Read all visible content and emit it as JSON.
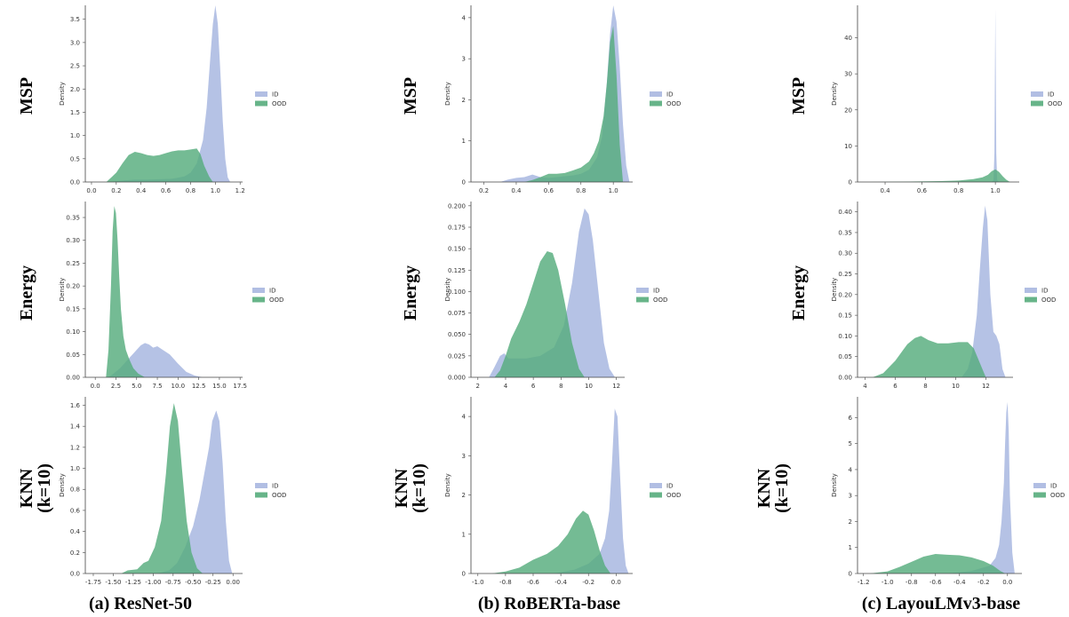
{
  "colors": {
    "ID": "#a8b7e0",
    "OOD": "#56ac7c"
  },
  "row_labels": [
    [
      "MSP"
    ],
    [
      "Energy"
    ],
    [
      "KNN",
      "(k=10)"
    ]
  ],
  "captions": [
    "(a) ResNet-50",
    "(b) RoBERTa-base",
    "(c) LayouLMv3-base"
  ],
  "chart_data": [
    {
      "type": "area",
      "model": "ResNet-50",
      "score": "MSP",
      "ylabel": "Density",
      "xlim": [
        -0.05,
        1.22
      ],
      "ylim": [
        0,
        3.8
      ],
      "xticks": [
        "0.0",
        "0.2",
        "0.4",
        "0.6",
        "0.8",
        "1.0",
        "1.2"
      ],
      "xtick_values": [
        0,
        0.2,
        0.4,
        0.6,
        0.8,
        1.0,
        1.2
      ],
      "yticks": [
        "0.0",
        "0.5",
        "1.0",
        "1.5",
        "2.0",
        "2.5",
        "3.0",
        "3.5"
      ],
      "ytick_values": [
        0,
        0.5,
        1,
        1.5,
        2,
        2.5,
        3,
        3.5
      ],
      "legend": [
        "ID",
        "OOD"
      ],
      "series": [
        {
          "name": "ID",
          "x": [
            0.15,
            0.25,
            0.35,
            0.45,
            0.55,
            0.65,
            0.75,
            0.8,
            0.85,
            0.9,
            0.93,
            0.96,
            0.98,
            1.0,
            1.02,
            1.04,
            1.06,
            1.08,
            1.1,
            1.12
          ],
          "y": [
            0,
            0.03,
            0.05,
            0.05,
            0.06,
            0.07,
            0.12,
            0.2,
            0.4,
            0.9,
            1.6,
            2.7,
            3.4,
            3.8,
            3.4,
            2.4,
            1.3,
            0.5,
            0.1,
            0
          ]
        },
        {
          "name": "OOD",
          "x": [
            0.12,
            0.2,
            0.25,
            0.3,
            0.35,
            0.4,
            0.45,
            0.5,
            0.55,
            0.6,
            0.65,
            0.7,
            0.75,
            0.8,
            0.85,
            0.88,
            0.91,
            0.95,
            0.98
          ],
          "y": [
            0,
            0.2,
            0.4,
            0.58,
            0.65,
            0.62,
            0.58,
            0.56,
            0.58,
            0.62,
            0.66,
            0.68,
            0.68,
            0.7,
            0.72,
            0.6,
            0.35,
            0.12,
            0
          ]
        }
      ]
    },
    {
      "type": "area",
      "model": "RoBERTa-base",
      "score": "MSP",
      "ylabel": "Density",
      "xlim": [
        0.12,
        1.12
      ],
      "ylim": [
        0,
        4.3
      ],
      "xticks": [
        "0.2",
        "0.4",
        "0.6",
        "0.8",
        "1.0"
      ],
      "xtick_values": [
        0.2,
        0.4,
        0.6,
        0.8,
        1.0
      ],
      "yticks": [
        "0",
        "1",
        "2",
        "3",
        "4"
      ],
      "ytick_values": [
        0,
        1,
        2,
        3,
        4
      ],
      "legend": [
        "ID",
        "OOD"
      ],
      "series": [
        {
          "name": "ID",
          "x": [
            0.3,
            0.35,
            0.4,
            0.45,
            0.5,
            0.55,
            0.6,
            0.65,
            0.7,
            0.75,
            0.8,
            0.85,
            0.9,
            0.93,
            0.96,
            0.98,
            1.0,
            1.02,
            1.04,
            1.06,
            1.08,
            1.1
          ],
          "y": [
            0,
            0.06,
            0.1,
            0.12,
            0.18,
            0.12,
            0.1,
            0.12,
            0.14,
            0.16,
            0.2,
            0.3,
            0.6,
            1.1,
            2.4,
            3.6,
            4.3,
            3.9,
            2.8,
            1.4,
            0.4,
            0
          ]
        },
        {
          "name": "OOD",
          "x": [
            0.45,
            0.5,
            0.55,
            0.6,
            0.65,
            0.7,
            0.75,
            0.8,
            0.85,
            0.88,
            0.91,
            0.94,
            0.96,
            0.98,
            1.0,
            1.02,
            1.04,
            1.06
          ],
          "y": [
            0,
            0.05,
            0.12,
            0.2,
            0.2,
            0.22,
            0.28,
            0.35,
            0.5,
            0.7,
            1.0,
            1.6,
            2.4,
            3.4,
            3.8,
            2.6,
            0.9,
            0
          ]
        }
      ]
    },
    {
      "type": "area",
      "model": "LayouLMv3-base",
      "score": "MSP",
      "ylabel": "Density",
      "xlim": [
        0.25,
        1.13
      ],
      "ylim": [
        0,
        49
      ],
      "xticks": [
        "0.4",
        "0.6",
        "0.8",
        "1.0"
      ],
      "xtick_values": [
        0.4,
        0.6,
        0.8,
        1.0
      ],
      "yticks": [
        "0",
        "10",
        "20",
        "30",
        "40"
      ],
      "ytick_values": [
        0,
        10,
        20,
        30,
        40
      ],
      "legend": [
        "ID",
        "OOD"
      ],
      "series": [
        {
          "name": "ID",
          "x": [
            0.98,
            0.99,
            0.995,
            1.0,
            1.005,
            1.01,
            1.02
          ],
          "y": [
            0,
            0.5,
            8,
            48,
            8,
            0.5,
            0
          ]
        },
        {
          "name": "OOD",
          "x": [
            0.3,
            0.5,
            0.7,
            0.8,
            0.88,
            0.93,
            0.96,
            0.98,
            1.0,
            1.02,
            1.04,
            1.06,
            1.08
          ],
          "y": [
            0,
            0.1,
            0.25,
            0.4,
            0.8,
            1.3,
            2.0,
            3.0,
            3.5,
            2.8,
            1.6,
            0.6,
            0
          ]
        }
      ]
    },
    {
      "type": "area",
      "model": "ResNet-50",
      "score": "Energy",
      "ylabel": "Density",
      "xlim": [
        -1.2,
        17.8
      ],
      "ylim": [
        0,
        0.385
      ],
      "xticks": [
        "0.0",
        "2.5",
        "5.0",
        "7.5",
        "10.0",
        "12.5",
        "15.0",
        "17.5"
      ],
      "xtick_values": [
        0,
        2.5,
        5,
        7.5,
        10,
        12.5,
        15,
        17.5
      ],
      "yticks": [
        "0.00",
        "0.05",
        "0.10",
        "0.15",
        "0.20",
        "0.25",
        "0.30",
        "0.35"
      ],
      "ytick_values": [
        0,
        0.05,
        0.1,
        0.15,
        0.2,
        0.25,
        0.3,
        0.35
      ],
      "legend": [
        "ID",
        "OOD"
      ],
      "series": [
        {
          "name": "ID",
          "x": [
            1.5,
            2,
            3,
            4,
            5,
            5.5,
            6,
            6.5,
            7,
            7.5,
            8,
            9,
            10,
            11,
            12,
            13
          ],
          "y": [
            0,
            0.005,
            0.02,
            0.04,
            0.06,
            0.07,
            0.075,
            0.072,
            0.065,
            0.068,
            0.062,
            0.05,
            0.03,
            0.012,
            0.004,
            0
          ]
        },
        {
          "name": "OOD",
          "x": [
            1.3,
            1.6,
            1.9,
            2.1,
            2.3,
            2.5,
            2.7,
            2.9,
            3.1,
            3.4,
            3.7,
            4.1,
            4.6,
            5.2,
            6.0
          ],
          "y": [
            0,
            0.06,
            0.2,
            0.32,
            0.375,
            0.36,
            0.3,
            0.22,
            0.15,
            0.09,
            0.06,
            0.04,
            0.02,
            0.008,
            0
          ]
        }
      ]
    },
    {
      "type": "area",
      "model": "RoBERTa-base",
      "score": "Energy",
      "ylabel": "Density",
      "xlim": [
        1.5,
        12.6
      ],
      "ylim": [
        0,
        0.205
      ],
      "xticks": [
        "2",
        "4",
        "6",
        "8",
        "10",
        "12"
      ],
      "xtick_values": [
        2,
        4,
        6,
        8,
        10,
        12
      ],
      "yticks": [
        "0.000",
        "0.025",
        "0.050",
        "0.075",
        "0.100",
        "0.125",
        "0.150",
        "0.175",
        "0.200"
      ],
      "ytick_values": [
        0,
        0.025,
        0.05,
        0.075,
        0.1,
        0.125,
        0.15,
        0.175,
        0.2
      ],
      "legend": [
        "ID",
        "OOD"
      ],
      "series": [
        {
          "name": "ID",
          "x": [
            2.8,
            3.2,
            3.6,
            3.9,
            4.2,
            4.8,
            5.5,
            6.5,
            7.5,
            8.2,
            8.8,
            9.3,
            9.7,
            10.0,
            10.3,
            10.7,
            11.1,
            11.5,
            11.9
          ],
          "y": [
            0,
            0.012,
            0.025,
            0.028,
            0.022,
            0.022,
            0.022,
            0.025,
            0.035,
            0.06,
            0.11,
            0.17,
            0.197,
            0.19,
            0.16,
            0.1,
            0.04,
            0.01,
            0
          ]
        },
        {
          "name": "OOD",
          "x": [
            3.2,
            3.6,
            4.0,
            4.4,
            5.0,
            5.5,
            6.0,
            6.5,
            7.0,
            7.4,
            7.8,
            8.3,
            8.8,
            9.3,
            9.7
          ],
          "y": [
            0,
            0.008,
            0.025,
            0.045,
            0.065,
            0.085,
            0.11,
            0.135,
            0.147,
            0.145,
            0.125,
            0.085,
            0.04,
            0.01,
            0
          ]
        }
      ]
    },
    {
      "type": "area",
      "model": "LayouLMv3-base",
      "score": "Energy",
      "ylabel": "Density",
      "xlim": [
        3.5,
        13.8
      ],
      "ylim": [
        0,
        0.425
      ],
      "xticks": [
        "4",
        "6",
        "8",
        "10",
        "12"
      ],
      "xtick_values": [
        4,
        6,
        8,
        10,
        12
      ],
      "yticks": [
        "0.00",
        "0.05",
        "0.10",
        "0.15",
        "0.20",
        "0.25",
        "0.30",
        "0.35",
        "0.40"
      ],
      "ytick_values": [
        0,
        0.05,
        0.1,
        0.15,
        0.2,
        0.25,
        0.3,
        0.35,
        0.4
      ],
      "legend": [
        "ID",
        "OOD"
      ],
      "series": [
        {
          "name": "ID",
          "x": [
            10.4,
            10.8,
            11.1,
            11.4,
            11.6,
            11.8,
            11.95,
            12.1,
            12.3,
            12.5,
            12.7,
            12.9,
            13.1,
            13.3
          ],
          "y": [
            0,
            0.02,
            0.06,
            0.15,
            0.26,
            0.36,
            0.415,
            0.38,
            0.2,
            0.11,
            0.1,
            0.08,
            0.02,
            0
          ]
        },
        {
          "name": "OOD",
          "x": [
            4.5,
            5.2,
            6.0,
            6.8,
            7.3,
            7.7,
            8.2,
            8.8,
            9.5,
            10.2,
            10.8,
            11.2,
            11.6,
            12.0
          ],
          "y": [
            0,
            0.01,
            0.04,
            0.08,
            0.095,
            0.1,
            0.09,
            0.082,
            0.082,
            0.085,
            0.085,
            0.07,
            0.035,
            0
          ]
        }
      ]
    },
    {
      "type": "area",
      "model": "ResNet-50",
      "score": "KNN (k=10)",
      "ylabel": "Density",
      "xlim": [
        -1.85,
        0.12
      ],
      "ylim": [
        0,
        1.68
      ],
      "xticks": [
        "-1.75",
        "-1.50",
        "-1.25",
        "-1.00",
        "-0.75",
        "-0.50",
        "-0.25",
        "0.00"
      ],
      "xtick_values": [
        -1.75,
        -1.5,
        -1.25,
        -1.0,
        -0.75,
        -0.5,
        -0.25,
        0
      ],
      "yticks": [
        "0.0",
        "0.2",
        "0.4",
        "0.6",
        "0.8",
        "1.0",
        "1.2",
        "1.4",
        "1.6"
      ],
      "ytick_values": [
        0,
        0.2,
        0.4,
        0.6,
        0.8,
        1.0,
        1.2,
        1.4,
        1.6
      ],
      "legend": [
        "ID",
        "OOD"
      ],
      "series": [
        {
          "name": "ID",
          "x": [
            -0.95,
            -0.8,
            -0.7,
            -0.6,
            -0.5,
            -0.42,
            -0.36,
            -0.3,
            -0.26,
            -0.21,
            -0.17,
            -0.13,
            -0.09,
            -0.05,
            -0.01
          ],
          "y": [
            0,
            0.03,
            0.1,
            0.25,
            0.45,
            0.7,
            0.95,
            1.2,
            1.45,
            1.55,
            1.45,
            1.05,
            0.5,
            0.12,
            0
          ]
        },
        {
          "name": "OOD",
          "x": [
            -1.4,
            -1.32,
            -1.2,
            -1.12,
            -1.06,
            -0.98,
            -0.9,
            -0.84,
            -0.79,
            -0.74,
            -0.69,
            -0.64,
            -0.58,
            -0.52,
            -0.45,
            -0.38
          ],
          "y": [
            0,
            0.03,
            0.04,
            0.1,
            0.12,
            0.25,
            0.5,
            0.95,
            1.4,
            1.62,
            1.45,
            1.0,
            0.5,
            0.2,
            0.05,
            0
          ]
        }
      ]
    },
    {
      "type": "area",
      "model": "RoBERTa-base",
      "score": "KNN (k=10)",
      "ylabel": "Density",
      "xlim": [
        -1.05,
        0.12
      ],
      "ylim": [
        0,
        4.5
      ],
      "xticks": [
        "-1.0",
        "-0.8",
        "-0.6",
        "-0.4",
        "-0.2",
        "0.0"
      ],
      "xtick_values": [
        -1.0,
        -0.8,
        -0.6,
        -0.4,
        -0.2,
        0
      ],
      "yticks": [
        "0",
        "1",
        "2",
        "3",
        "4"
      ],
      "ytick_values": [
        0,
        1,
        2,
        3,
        4
      ],
      "legend": [
        "ID",
        "OOD"
      ],
      "series": [
        {
          "name": "ID",
          "x": [
            -0.45,
            -0.3,
            -0.2,
            -0.12,
            -0.08,
            -0.05,
            -0.03,
            -0.01,
            0.01,
            0.03,
            0.05,
            0.07,
            0.09
          ],
          "y": [
            0,
            0.1,
            0.25,
            0.5,
            0.9,
            1.6,
            2.8,
            4.2,
            4.0,
            2.4,
            0.9,
            0.2,
            0
          ]
        },
        {
          "name": "OOD",
          "x": [
            -0.9,
            -0.8,
            -0.7,
            -0.6,
            -0.5,
            -0.42,
            -0.35,
            -0.29,
            -0.24,
            -0.2,
            -0.16,
            -0.12,
            -0.08,
            -0.04
          ],
          "y": [
            0,
            0.05,
            0.15,
            0.35,
            0.5,
            0.7,
            1.0,
            1.4,
            1.6,
            1.5,
            1.1,
            0.6,
            0.2,
            0
          ]
        }
      ]
    },
    {
      "type": "area",
      "model": "LayouLMv3-base",
      "score": "KNN (k=10)",
      "ylabel": "Density",
      "xlim": [
        -1.25,
        0.12
      ],
      "ylim": [
        0,
        6.8
      ],
      "xticks": [
        "-1.2",
        "-1.0",
        "-0.8",
        "-0.6",
        "-0.4",
        "-0.2",
        "0.0"
      ],
      "xtick_values": [
        -1.2,
        -1.0,
        -0.8,
        -0.6,
        -0.4,
        -0.2,
        0
      ],
      "yticks": [
        "0",
        "1",
        "2",
        "3",
        "4",
        "5",
        "6"
      ],
      "ytick_values": [
        0,
        1,
        2,
        3,
        4,
        5,
        6
      ],
      "legend": [
        "ID",
        "OOD"
      ],
      "series": [
        {
          "name": "ID",
          "x": [
            -0.5,
            -0.3,
            -0.15,
            -0.1,
            -0.07,
            -0.05,
            -0.03,
            -0.02,
            -0.01,
            0.0,
            0.01,
            0.02,
            0.04,
            0.06
          ],
          "y": [
            0,
            0.1,
            0.3,
            0.6,
            1.1,
            2.0,
            3.5,
            5.0,
            6.2,
            6.6,
            5.5,
            3.0,
            0.8,
            0
          ]
        },
        {
          "name": "OOD",
          "x": [
            -1.15,
            -1.0,
            -0.9,
            -0.8,
            -0.7,
            -0.6,
            -0.5,
            -0.4,
            -0.3,
            -0.2,
            -0.12,
            -0.06,
            -0.02
          ],
          "y": [
            0,
            0.08,
            0.25,
            0.45,
            0.65,
            0.75,
            0.72,
            0.7,
            0.62,
            0.48,
            0.3,
            0.1,
            0
          ]
        }
      ]
    }
  ]
}
